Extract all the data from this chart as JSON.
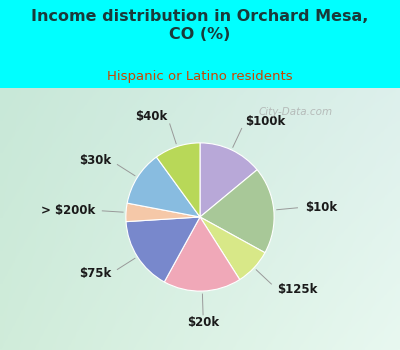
{
  "title": "Income distribution in Orchard Mesa,\nCO (%)",
  "subtitle": "Hispanic or Latino residents",
  "title_color": "#1a3a3a",
  "subtitle_color": "#cc4400",
  "background_color": "#00ffff",
  "watermark": "City-Data.com",
  "labels": [
    "$100k",
    "$10k",
    "$125k",
    "$20k",
    "$75k",
    "> $200k",
    "$30k",
    "$40k"
  ],
  "values": [
    14,
    19,
    8,
    17,
    16,
    4,
    12,
    10
  ],
  "wedge_colors": [
    "#b8a8d8",
    "#a8c898",
    "#d8e888",
    "#f0a8b8",
    "#7888cc",
    "#f5c8a8",
    "#88bce0",
    "#b8d858"
  ],
  "bg_colors": [
    "#c8e8d0",
    "#d8eee0",
    "#e8f4e8",
    "#d0ecdc"
  ],
  "label_color": "#1a1a1a",
  "label_fontsize": 8.5,
  "title_fontsize": 11.5,
  "subtitle_fontsize": 9.5
}
